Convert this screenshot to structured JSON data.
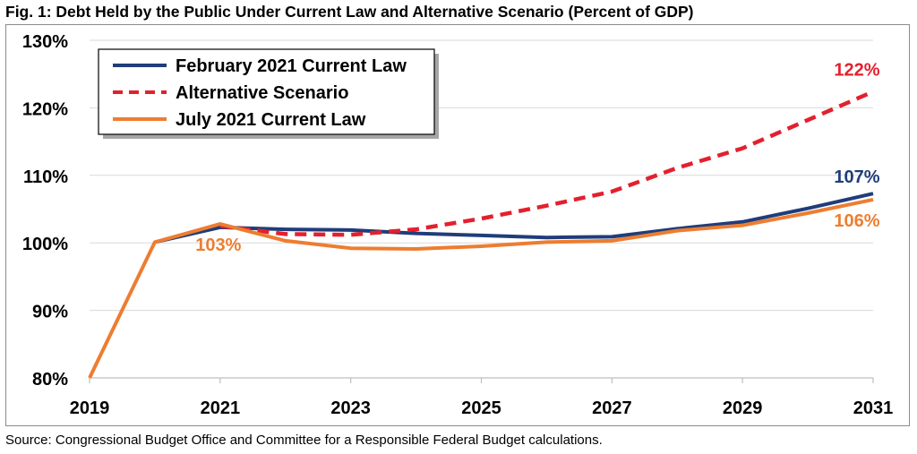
{
  "title": "Fig. 1: Debt Held by the Public Under Current Law and Alternative Scenario (Percent of GDP)",
  "source": "Source: Congressional Budget Office and Committee for a Responsible Federal Budget calculations.",
  "chart_data": {
    "type": "line",
    "x": [
      2019,
      2020,
      2021,
      2022,
      2023,
      2024,
      2025,
      2026,
      2027,
      2028,
      2029,
      2030,
      2031
    ],
    "x_tick_labels": [
      "2019",
      "2021",
      "2023",
      "2025",
      "2027",
      "2029",
      "2031"
    ],
    "y_tick_labels": [
      "80%",
      "90%",
      "100%",
      "110%",
      "120%",
      "130%"
    ],
    "ylim": [
      80,
      130
    ],
    "xlim": [
      2019,
      2031
    ],
    "grid": true,
    "legend_position": "top-left",
    "series": [
      {
        "name": "February 2021 Current Law",
        "color": "#1f3d7a",
        "style": "solid",
        "values": [
          null,
          100.1,
          102.3,
          102.0,
          101.9,
          101.4,
          101.1,
          100.8,
          100.9,
          102.1,
          103.1,
          105.1,
          107.3
        ]
      },
      {
        "name": "Alternative Scenario",
        "color": "#e3202e",
        "style": "dashed",
        "values": [
          null,
          null,
          102.5,
          101.3,
          101.2,
          102.0,
          103.6,
          105.5,
          107.6,
          111.1,
          114.0,
          118.2,
          122.4
        ]
      },
      {
        "name": "July 2021 Current Law",
        "color": "#ed7d31",
        "style": "solid",
        "values": [
          80.0,
          100.1,
          102.8,
          100.3,
          99.2,
          99.1,
          99.5,
          100.1,
          100.3,
          101.8,
          102.6,
          104.4,
          106.4
        ]
      }
    ],
    "annotations": [
      {
        "text": "103%",
        "series": 2,
        "x": 2021,
        "color": "#ed7d31"
      },
      {
        "text": "122%",
        "series": 1,
        "x": 2031,
        "color": "#e3202e"
      },
      {
        "text": "107%",
        "series": 0,
        "x": 2031,
        "color": "#1f3d7a"
      },
      {
        "text": "106%",
        "series": 2,
        "x": 2031,
        "color": "#ed7d31"
      }
    ]
  }
}
